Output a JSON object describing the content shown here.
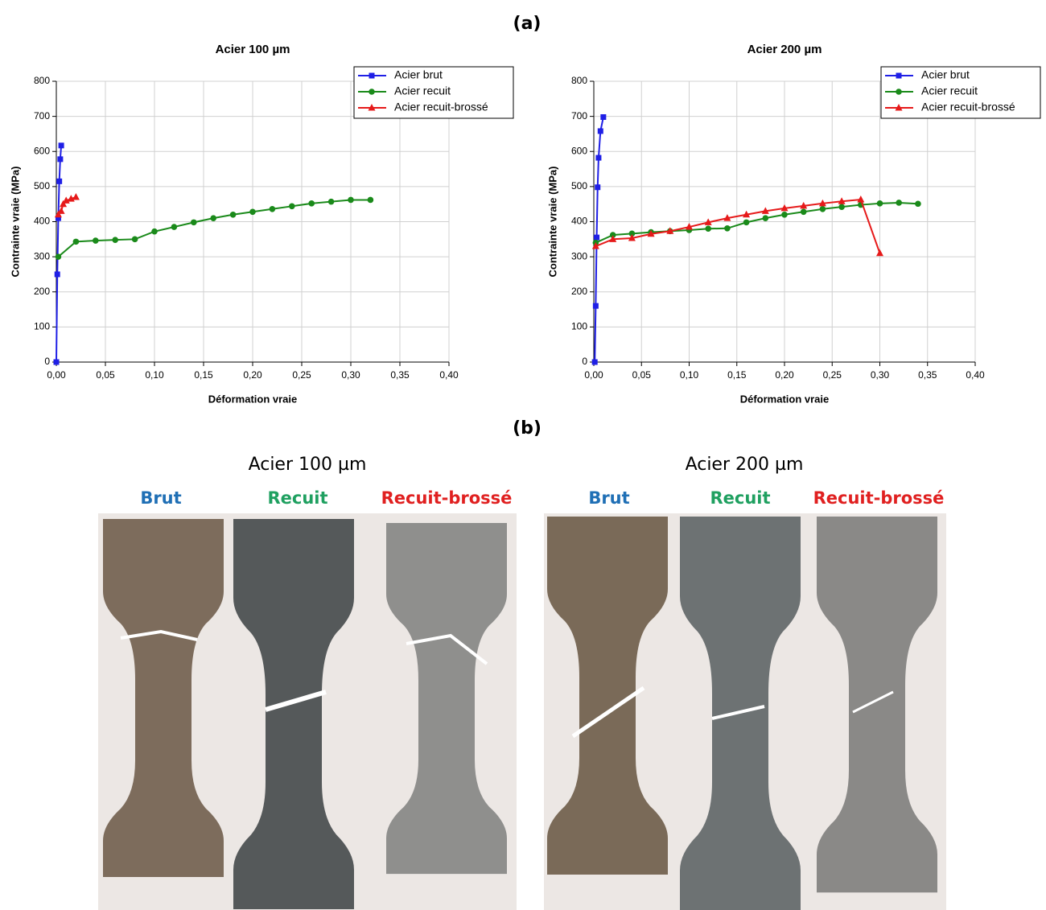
{
  "panel_a_label": "(a)",
  "panel_b_label": "(b)",
  "chart_data": [
    {
      "type": "line",
      "title": "Acier 100 µm",
      "x_label": "Déformation vraie",
      "y_label": "Contrainte vraie (MPa)",
      "xlim": [
        0,
        0.4
      ],
      "ylim": [
        0,
        800
      ],
      "grid": true,
      "legend": "upper right",
      "xticks": [
        {
          "value": 0,
          "label": "0,00"
        },
        {
          "value": 0.05,
          "label": "0,05"
        },
        {
          "value": 0.1,
          "label": "0,10"
        },
        {
          "value": 0.15,
          "label": "0,15"
        },
        {
          "value": 0.2,
          "label": "0,20"
        },
        {
          "value": 0.25,
          "label": "0,25"
        },
        {
          "value": 0.3,
          "label": "0,30"
        },
        {
          "value": 0.35,
          "label": "0,35"
        },
        {
          "value": 0.4,
          "label": "0,40"
        }
      ],
      "yticks": [
        0,
        100,
        200,
        300,
        400,
        500,
        600,
        700,
        800
      ],
      "series": [
        {
          "name": "Acier brut",
          "color": "#1f1fe6",
          "marker": "square",
          "x": [
            0,
            0.001,
            0.002,
            0.003,
            0.004,
            0.005
          ],
          "values": [
            0,
            250,
            410,
            515,
            578,
            617
          ]
        },
        {
          "name": "Acier recuit",
          "color": "#1a8a1a",
          "marker": "circle",
          "x": [
            0.002,
            0.02,
            0.04,
            0.06,
            0.08,
            0.1,
            0.12,
            0.14,
            0.16,
            0.18,
            0.2,
            0.22,
            0.24,
            0.26,
            0.28,
            0.3,
            0.32
          ],
          "values": [
            300,
            343,
            346,
            348,
            350,
            372,
            385,
            398,
            410,
            420,
            428,
            436,
            444,
            452,
            457,
            462,
            462
          ]
        },
        {
          "name": "Acier recuit-brossé",
          "color": "#e61a1a",
          "marker": "triangle",
          "x": [
            0.002,
            0.005,
            0.007,
            0.01,
            0.015,
            0.02
          ],
          "values": [
            420,
            430,
            450,
            460,
            465,
            470
          ]
        }
      ]
    },
    {
      "type": "line",
      "title": "Acier 200 µm",
      "x_label": "Déformation vraie",
      "y_label": "Contrainte vraie (MPa)",
      "xlim": [
        0,
        0.4
      ],
      "ylim": [
        0,
        800
      ],
      "grid": true,
      "legend": "upper right",
      "xticks": [
        {
          "value": 0,
          "label": "0,00"
        },
        {
          "value": 0.05,
          "label": "0,05"
        },
        {
          "value": 0.1,
          "label": "0,10"
        },
        {
          "value": 0.15,
          "label": "0,15"
        },
        {
          "value": 0.2,
          "label": "0,20"
        },
        {
          "value": 0.25,
          "label": "0,25"
        },
        {
          "value": 0.3,
          "label": "0,30"
        },
        {
          "value": 0.35,
          "label": "0,35"
        },
        {
          "value": 0.4,
          "label": "0,40"
        }
      ],
      "yticks": [
        0,
        100,
        200,
        300,
        400,
        500,
        600,
        700,
        800
      ],
      "series": [
        {
          "name": "Acier brut",
          "color": "#1f1fe6",
          "marker": "square",
          "x": [
            0.001,
            0.002,
            0.003,
            0.004,
            0.005,
            0.007,
            0.01
          ],
          "values": [
            0,
            160,
            355,
            498,
            582,
            658,
            698
          ]
        },
        {
          "name": "Acier recuit",
          "color": "#1a8a1a",
          "marker": "circle",
          "x": [
            0.002,
            0.02,
            0.04,
            0.06,
            0.08,
            0.1,
            0.12,
            0.14,
            0.16,
            0.18,
            0.2,
            0.22,
            0.24,
            0.26,
            0.28,
            0.3,
            0.32,
            0.34
          ],
          "values": [
            340,
            362,
            366,
            370,
            373,
            376,
            380,
            381,
            398,
            410,
            420,
            428,
            436,
            442,
            448,
            452,
            454,
            451
          ]
        },
        {
          "name": "Acier recuit-brossé",
          "color": "#e61a1a",
          "marker": "triangle",
          "x": [
            0.002,
            0.02,
            0.04,
            0.06,
            0.08,
            0.1,
            0.12,
            0.14,
            0.16,
            0.18,
            0.2,
            0.22,
            0.24,
            0.26,
            0.28,
            0.3
          ],
          "values": [
            330,
            350,
            353,
            365,
            373,
            385,
            398,
            410,
            420,
            430,
            438,
            445,
            452,
            458,
            463,
            310
          ]
        }
      ]
    }
  ],
  "photos": [
    {
      "title": "Acier 100 µm",
      "labels": [
        {
          "text": "Brut",
          "color": "#1f6fb5"
        },
        {
          "text": "Recuit",
          "color": "#1fa060"
        },
        {
          "text": "Recuit-brossé",
          "color": "#e02020"
        }
      ]
    },
    {
      "title": "Acier 200 µm",
      "labels": [
        {
          "text": "Brut",
          "color": "#1f6fb5"
        },
        {
          "text": "Recuit",
          "color": "#1fa060"
        },
        {
          "text": "Recuit-brossé",
          "color": "#e02020"
        }
      ]
    }
  ]
}
